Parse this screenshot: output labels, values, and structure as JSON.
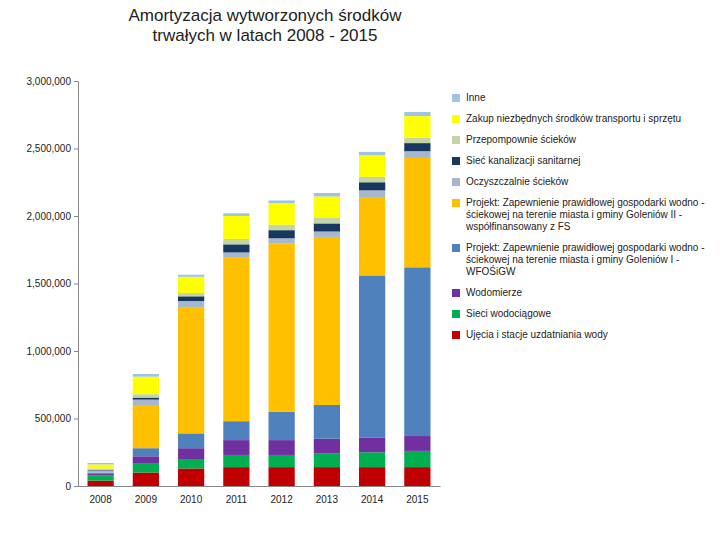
{
  "chart_data": {
    "type": "bar",
    "stacked": true,
    "legend": "right",
    "grid": false,
    "title": "Amortyzacja wytworzonych środków trwałych w latach 2008 - 2015",
    "categories": [
      "2008",
      "2009",
      "2010",
      "2011",
      "2012",
      "2013",
      "2014",
      "2015"
    ],
    "ylim": [
      0,
      3000000
    ],
    "yticks": [
      0,
      {
        "value": 500000,
        "label": "500,000"
      },
      {
        "value": 1000000,
        "label": "1,000,000"
      },
      {
        "value": 1500000,
        "label": "1,500,000"
      },
      {
        "value": 2000000,
        "label": "2,000,000"
      },
      {
        "value": 2500000,
        "label": "2,500,000"
      },
      {
        "value": 3000000,
        "label": "3,000,000"
      }
    ],
    "series": [
      {
        "name": "Ujęcia i stacje uzdatniania wody",
        "color": "#c00000",
        "values": [
          40000,
          100000,
          130000,
          140000,
          140000,
          140000,
          140000,
          140000
        ]
      },
      {
        "name": "Sieci wodociągowe",
        "color": "#00b050",
        "values": [
          40000,
          70000,
          70000,
          90000,
          90000,
          100000,
          110000,
          120000
        ]
      },
      {
        "name": "Wodomierze",
        "color": "#7030a0",
        "values": [
          10000,
          50000,
          80000,
          110000,
          110000,
          110000,
          110000,
          110000
        ]
      },
      {
        "name": "Projekt: Zapewnienie prawidłowej gospodarki wodno - ściekowej na terenie miasta i gminy Goleniów I - WFOŚiGW",
        "color": "#4f81bd",
        "values": [
          10000,
          60000,
          110000,
          140000,
          210000,
          250000,
          1200000,
          1250000
        ]
      },
      {
        "name": "Projekt: Zapewnienie prawidłowej gospodarki wodno - ściekowej na terenie miasta i gminy Goleniów II - współfinansowany z FS",
        "color": "#ffc000",
        "values": [
          0,
          320000,
          930000,
          1210000,
          1245000,
          1245000,
          580000,
          810000
        ]
      },
      {
        "name": "Oczyszczalnie ścieków",
        "color": "#a5b8d0",
        "values": [
          15000,
          40000,
          50000,
          40000,
          40000,
          40000,
          50000,
          50000
        ]
      },
      {
        "name": "Sieć kanalizacji sanitarnej",
        "color": "#17375e",
        "values": [
          5000,
          15000,
          35000,
          60000,
          60000,
          60000,
          60000,
          60000
        ]
      },
      {
        "name": "Przepompownie ścieków",
        "color": "#c3d5a6",
        "values": [
          10000,
          25000,
          25000,
          40000,
          40000,
          40000,
          40000,
          40000
        ]
      },
      {
        "name": "Zakup niezbędnych środków transportu i sprzętu",
        "color": "#ffff00",
        "values": [
          30000,
          130000,
          120000,
          170000,
          160000,
          160000,
          160000,
          160000
        ]
      },
      {
        "name": "Inne",
        "color": "#9dc3e6",
        "values": [
          10000,
          20000,
          15000,
          20000,
          20000,
          25000,
          25000,
          30000
        ]
      }
    ]
  }
}
